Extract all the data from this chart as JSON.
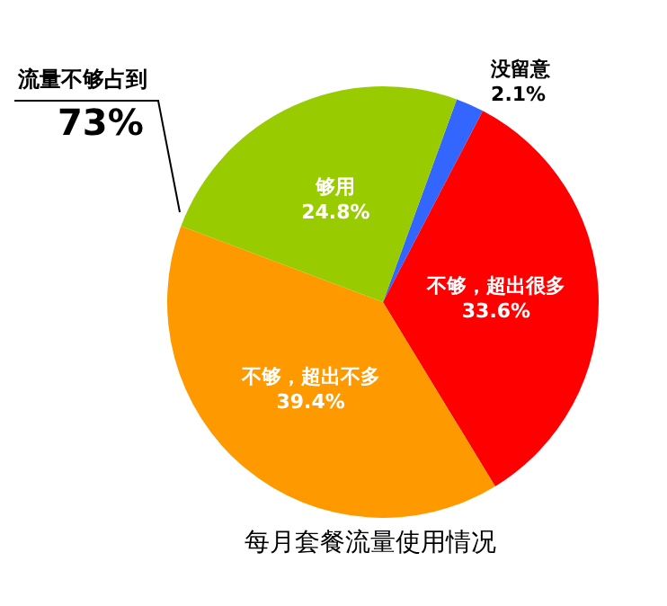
{
  "chart_data": {
    "type": "pie",
    "title": "每月套餐流量使用情况",
    "categories": [
      "没留意",
      "不够，超出很多",
      "不够，超出不多",
      "够用"
    ],
    "values": [
      2.1,
      33.6,
      39.4,
      24.8
    ],
    "colors": [
      "#3366ff",
      "#ff0000",
      "#ff9900",
      "#99cc00"
    ],
    "value_labels": [
      "2.1%",
      "33.6%",
      "39.4%",
      "24.8%"
    ],
    "legend": false,
    "annotations": [
      "流量不够占到",
      "73%"
    ]
  }
}
